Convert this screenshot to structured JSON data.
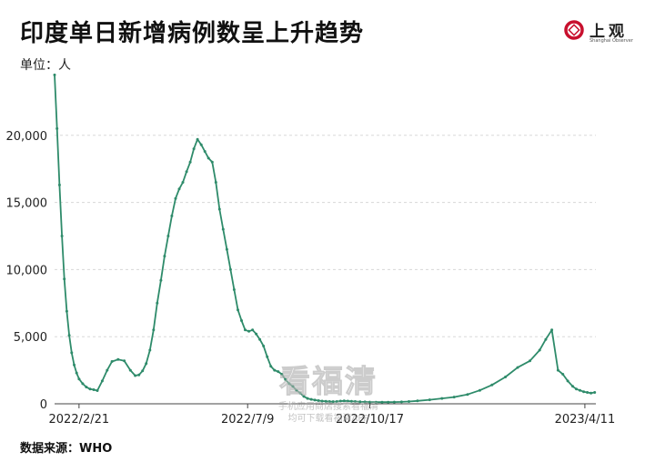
{
  "header": {
    "title": "印度单日新增病例数呈上升趋势",
    "unit": "单位：人",
    "logo_text": "上观",
    "logo_subtext": "Shanghai Observer"
  },
  "footer": {
    "source": "数据来源：WHO"
  },
  "watermark": {
    "big": "看福清",
    "line1": "手机应用商店搜索看福清",
    "line2": "均可下载看福清APP"
  },
  "colors": {
    "series": "#2e8b6a",
    "grid": "#d8d8d8",
    "axis": "#444444"
  },
  "chart_data": {
    "type": "line",
    "title": "印度单日新增病例数呈上升趋势",
    "ylabel": "单位：人",
    "xlabel": "",
    "ylim": [
      0,
      25000
    ],
    "yticks": [
      0,
      5000,
      10000,
      15000,
      20000
    ],
    "ytick_labels": [
      "0",
      "5,000",
      "10,000",
      "15,000",
      "20,000"
    ],
    "x_range": [
      "2022-02-01",
      "2023-04-20"
    ],
    "xticks": [
      "2022-02-21",
      "2022-07-09",
      "2022-10-17",
      "2023-04-11"
    ],
    "xtick_labels": [
      "2022/2/21",
      "2022/7/9",
      "2022/10/17",
      "2023/4/11"
    ],
    "grid": true,
    "series": [
      {
        "x": [
          "2022-02-01",
          "2022-02-03",
          "2022-02-05",
          "2022-02-07",
          "2022-02-09",
          "2022-02-11",
          "2022-02-13",
          "2022-02-15",
          "2022-02-17",
          "2022-02-19",
          "2022-02-21",
          "2022-02-24",
          "2022-02-27",
          "2022-03-02",
          "2022-03-05",
          "2022-03-08",
          "2022-03-12",
          "2022-03-16",
          "2022-03-20",
          "2022-03-25",
          "2022-03-30",
          "2022-04-04",
          "2022-04-08",
          "2022-04-11",
          "2022-04-14",
          "2022-04-17",
          "2022-04-20",
          "2022-04-23",
          "2022-04-26",
          "2022-04-29",
          "2022-05-02",
          "2022-05-05",
          "2022-05-08",
          "2022-05-11",
          "2022-05-14",
          "2022-05-17",
          "2022-05-20",
          "2022-05-23",
          "2022-05-26",
          "2022-05-29",
          "2022-06-01",
          "2022-06-04",
          "2022-06-07",
          "2022-06-10",
          "2022-06-13",
          "2022-06-16",
          "2022-06-19",
          "2022-06-22",
          "2022-06-25",
          "2022-06-28",
          "2022-07-01",
          "2022-07-04",
          "2022-07-07",
          "2022-07-10",
          "2022-07-13",
          "2022-07-16",
          "2022-07-19",
          "2022-07-22",
          "2022-07-25",
          "2022-07-28",
          "2022-07-31",
          "2022-08-03",
          "2022-08-06",
          "2022-08-09",
          "2022-08-12",
          "2022-08-15",
          "2022-08-18",
          "2022-08-21",
          "2022-08-24",
          "2022-08-27",
          "2022-08-30",
          "2022-09-02",
          "2022-09-05",
          "2022-09-08",
          "2022-09-11",
          "2022-09-14",
          "2022-09-17",
          "2022-09-20",
          "2022-09-23",
          "2022-09-26",
          "2022-09-29",
          "2022-10-02",
          "2022-10-05",
          "2022-10-09",
          "2022-10-13",
          "2022-10-17",
          "2022-10-22",
          "2022-10-27",
          "2022-11-01",
          "2022-11-06",
          "2022-11-12",
          "2022-11-18",
          "2022-11-25",
          "2022-12-05",
          "2022-12-15",
          "2022-12-25",
          "2023-01-05",
          "2023-01-15",
          "2023-01-25",
          "2023-02-05",
          "2023-02-15",
          "2023-02-25",
          "2023-03-05",
          "2023-03-10",
          "2023-03-15",
          "2023-03-20",
          "2023-03-24",
          "2023-03-28",
          "2023-04-01",
          "2023-04-04",
          "2023-04-07",
          "2023-04-10",
          "2023-04-13",
          "2023-04-16",
          "2023-04-19"
        ],
        "values": [
          24500,
          20500,
          16300,
          12500,
          9300,
          6900,
          5100,
          3800,
          2900,
          2300,
          1850,
          1500,
          1250,
          1100,
          1050,
          980,
          1700,
          2500,
          3150,
          3300,
          3200,
          2500,
          2100,
          2150,
          2450,
          3000,
          4000,
          5500,
          7500,
          9200,
          11000,
          12500,
          14000,
          15300,
          16000,
          16500,
          17300,
          18000,
          19000,
          19700,
          19300,
          18800,
          18300,
          18000,
          16500,
          14500,
          13000,
          11500,
          10000,
          8500,
          7000,
          6200,
          5500,
          5400,
          5500,
          5200,
          4800,
          4300,
          3500,
          2800,
          2500,
          2400,
          2200,
          1800,
          1500,
          1300,
          1000,
          800,
          550,
          400,
          330,
          280,
          240,
          200,
          180,
          170,
          160,
          170,
          200,
          220,
          200,
          180,
          170,
          150,
          140,
          130,
          120,
          120,
          120,
          130,
          140,
          170,
          220,
          300,
          400,
          500,
          700,
          1000,
          1400,
          2000,
          2700,
          3200,
          4000,
          4800,
          5500,
          2500,
          2200,
          1700,
          1300,
          1100,
          1000,
          900,
          850,
          800,
          850
        ]
      }
    ]
  }
}
